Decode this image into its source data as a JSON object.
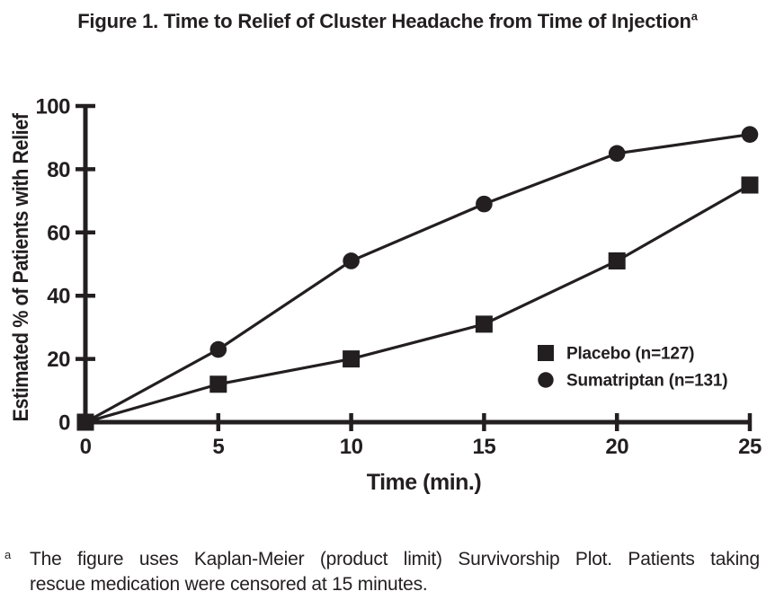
{
  "page": {
    "background": "#ffffff",
    "ink": "#231f20"
  },
  "title": {
    "text": "Figure 1. Time to Relief of Cluster Headache from Time of Injection",
    "superscript": "a"
  },
  "chart_data": {
    "type": "line",
    "title": "Figure 1. Time to Relief of Cluster Headache from Time of Injection",
    "x": [
      0,
      5,
      10,
      15,
      20,
      25
    ],
    "series": [
      {
        "name": "Placebo (n=127)",
        "marker": "square",
        "values": [
          0,
          12,
          20,
          31,
          51,
          75
        ]
      },
      {
        "name": "Sumatriptan (n=131)",
        "marker": "circle",
        "values": [
          0,
          23,
          51,
          69,
          85,
          91
        ]
      }
    ],
    "xlabel": "Time (min.)",
    "ylabel": "Estimated % of Patients with Relief",
    "xlim": [
      0,
      25
    ],
    "ylim": [
      0,
      100
    ],
    "xticks": [
      0,
      5,
      10,
      15,
      20,
      25
    ],
    "yticks": [
      0,
      20,
      40,
      60,
      80,
      100
    ],
    "grid": false,
    "legend_position": "inside-right-lower",
    "line_color": "#231f20",
    "marker_color": "#231f20"
  },
  "footnote": {
    "marker": "a",
    "lines": [
      "The figure uses Kaplan-Meier (product limit) Survivorship Plot. Patients taking",
      "rescue medication were censored at 15 minutes."
    ]
  }
}
